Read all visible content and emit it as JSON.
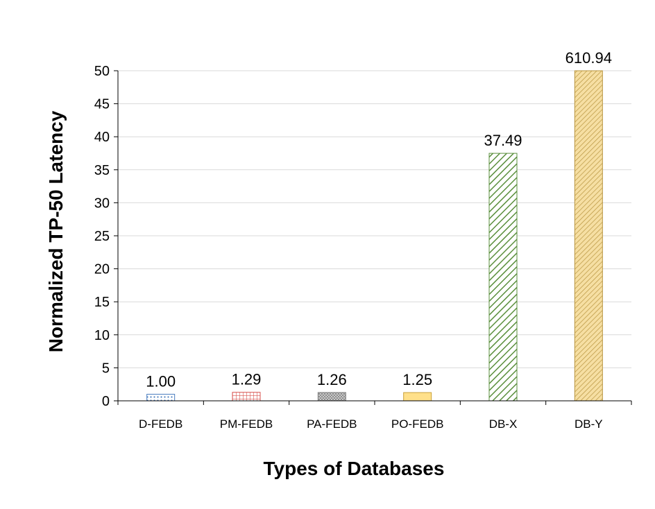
{
  "chart_data": {
    "type": "bar",
    "title": "",
    "xlabel": "Types of Databases",
    "ylabel": "Normalized TP-50 Latency",
    "ylim": [
      0,
      50
    ],
    "yticks": [
      0,
      5,
      10,
      15,
      20,
      25,
      30,
      35,
      40,
      45,
      50
    ],
    "grid": true,
    "categories": [
      "D-FEDB",
      "PM-FEDB",
      "PA-FEDB",
      "PO-FEDB",
      "DB-X",
      "DB-Y"
    ],
    "values": [
      1.0,
      1.29,
      1.26,
      1.25,
      37.49,
      610.94
    ],
    "value_labels": [
      "1.00",
      "1.29",
      "1.26",
      "1.25",
      "37.49",
      "610.94"
    ],
    "bar_styles": [
      {
        "pattern": "dots",
        "fill": "#ffffff",
        "stroke": "#4a7dbf"
      },
      {
        "pattern": "grid",
        "fill": "#ffffff",
        "stroke": "#d9534f"
      },
      {
        "pattern": "crosshatch",
        "fill": "#d9d9d9",
        "stroke": "#7f7f7f"
      },
      {
        "pattern": "solid",
        "fill": "#ffe08a",
        "stroke": "#c9a13a"
      },
      {
        "pattern": "diagonal",
        "fill": "#ffffff",
        "stroke": "#5a8f3c"
      },
      {
        "pattern": "diagonal-fine",
        "fill": "#f6dfa3",
        "stroke": "#b8943e"
      }
    ]
  }
}
